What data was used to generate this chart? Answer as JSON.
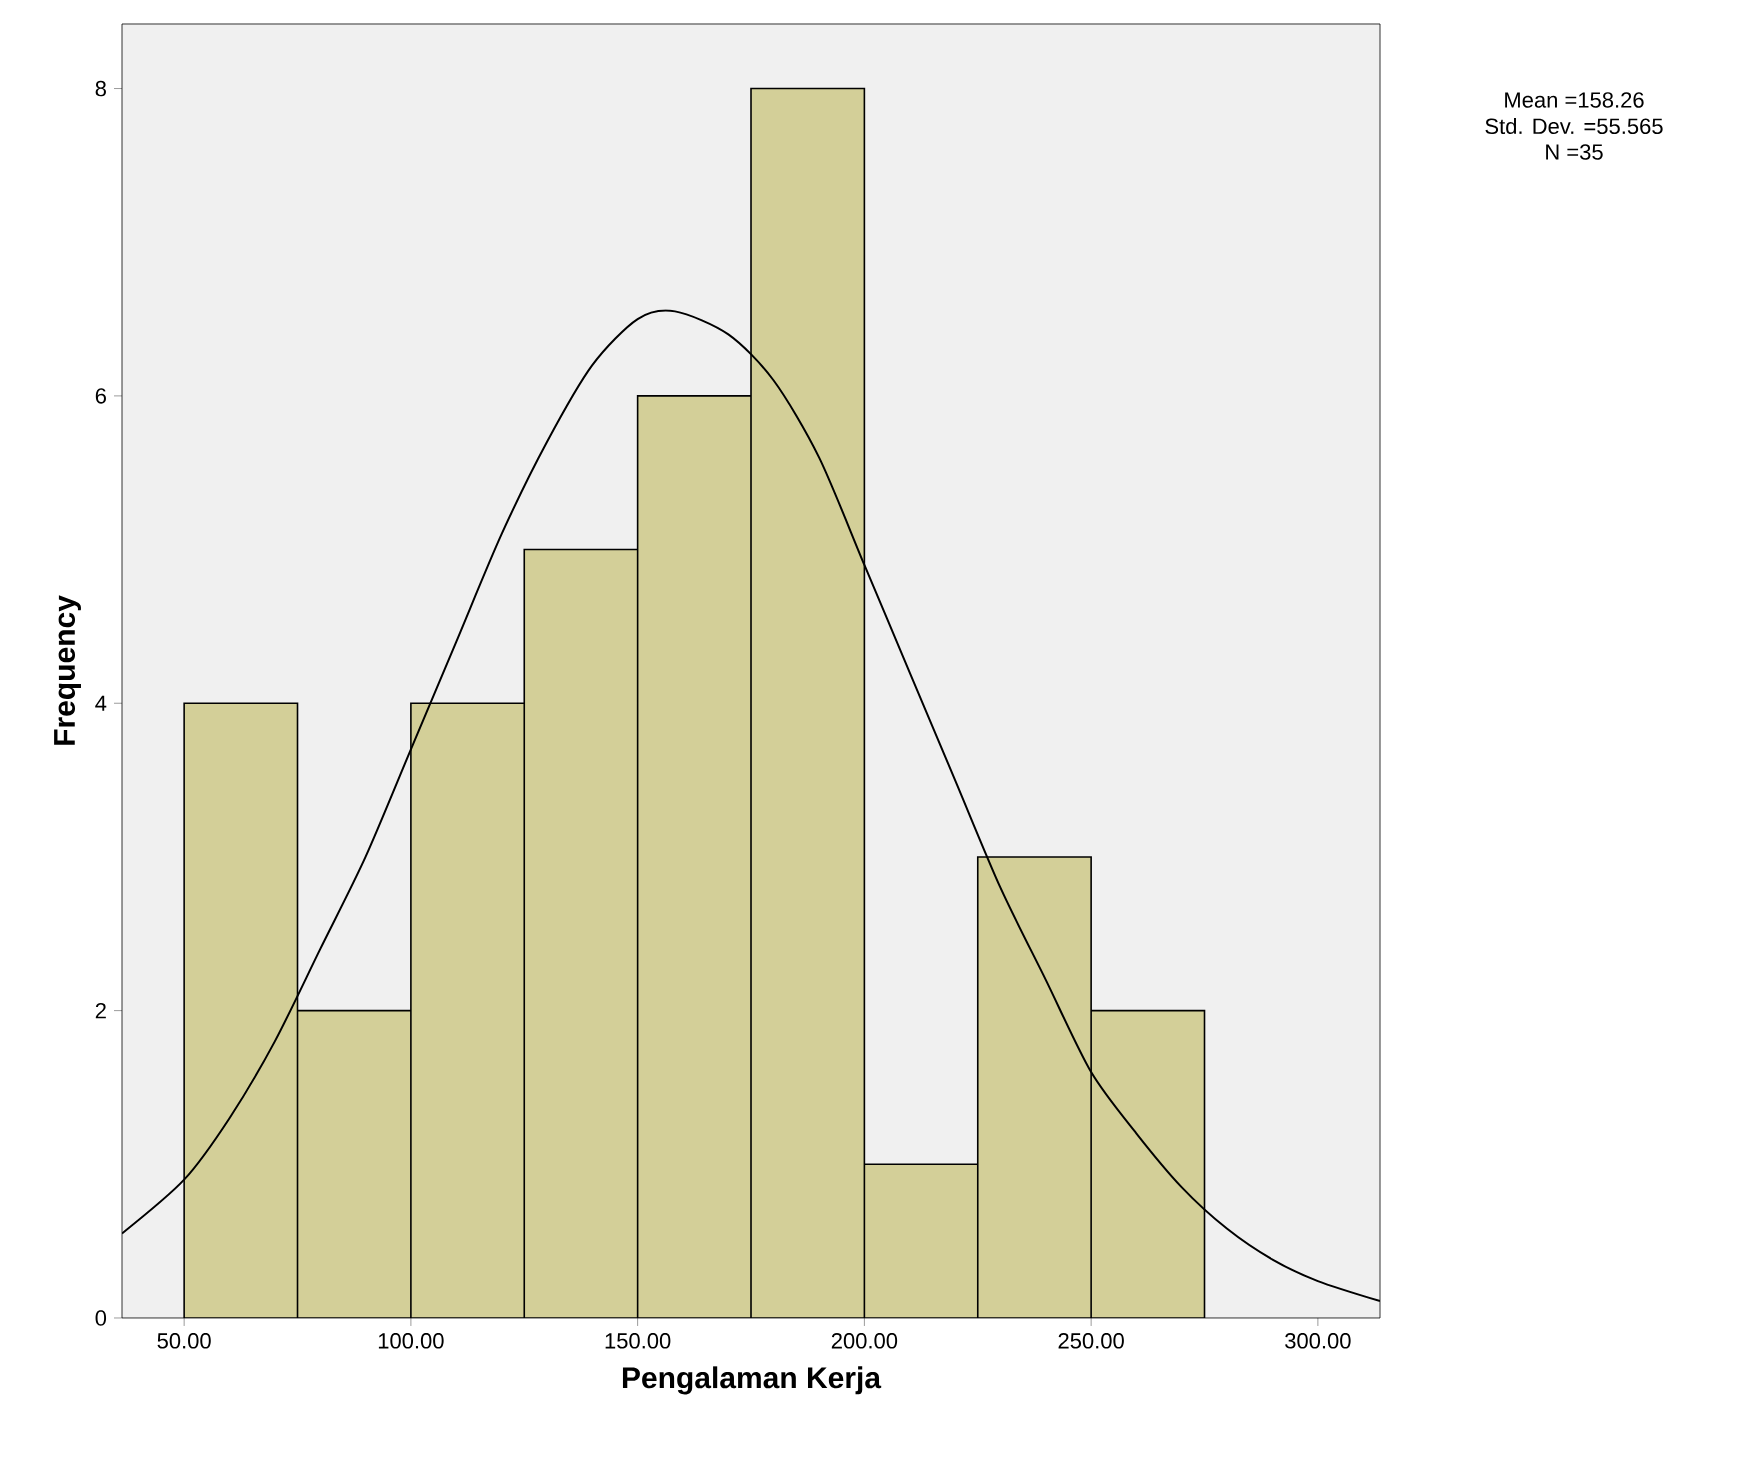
{
  "chart_data": {
    "type": "histogram",
    "xlabel": "Pengalaman Kerja",
    "ylabel": "Frequency",
    "bins": [
      50,
      75,
      100,
      125,
      150,
      175,
      200,
      225,
      250,
      275
    ],
    "values": [
      4,
      2,
      4,
      5,
      6,
      8,
      1,
      3,
      2
    ],
    "color": "#d3cf98",
    "series": [
      {
        "type": "line",
        "color": "#000000",
        "x": [
          36.3,
          50,
          60,
          70,
          80,
          90,
          100,
          110,
          120,
          130,
          140,
          150,
          158.26,
          170,
          180,
          190,
          200,
          210,
          220,
          230,
          240,
          250,
          260,
          270,
          280,
          290,
          300,
          313.7
        ],
        "values": [
          0.55,
          0.9,
          1.3,
          1.8,
          2.4,
          3.0,
          3.7,
          4.4,
          5.1,
          5.7,
          6.2,
          6.5,
          6.55,
          6.4,
          6.1,
          5.6,
          4.9,
          4.2,
          3.5,
          2.8,
          2.2,
          1.6,
          1.2,
          0.85,
          0.58,
          0.38,
          0.24,
          0.11
        ]
      }
    ],
    "xlim": [
      36.3,
      313.7
    ],
    "ylim": [
      0,
      8.42
    ],
    "xticks": [
      {
        "value": 50,
        "label": "50.00"
      },
      {
        "value": 100,
        "label": "100.00"
      },
      {
        "value": 150,
        "label": "150.00"
      },
      {
        "value": 200,
        "label": "200.00"
      },
      {
        "value": 250,
        "label": "250.00"
      },
      {
        "value": 300,
        "label": "300.00"
      }
    ],
    "yticks": [
      0,
      2,
      4,
      6,
      8
    ],
    "annotations": [
      "Mean =158.26",
      "Std. Dev. =55.565",
      "N =35"
    ]
  }
}
